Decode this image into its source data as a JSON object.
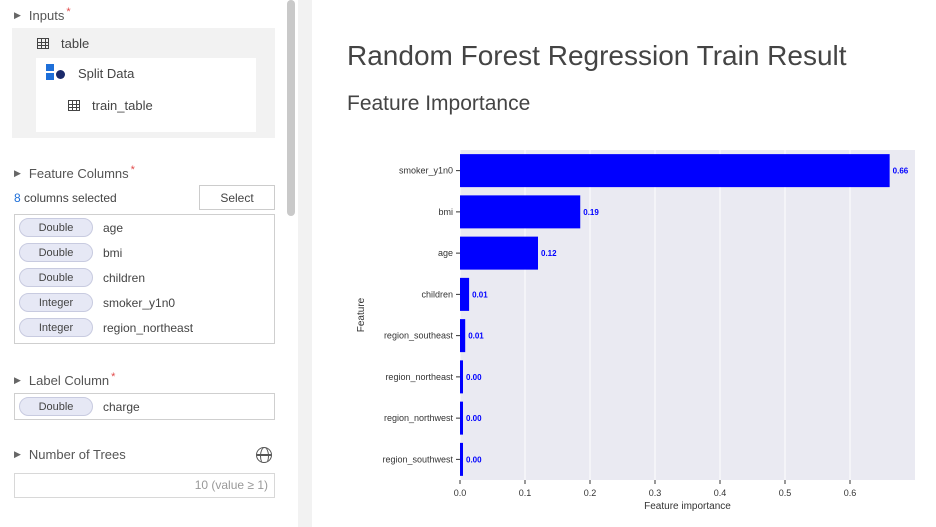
{
  "left_panel": {
    "inputs": {
      "label": "Inputs",
      "table_label": "table",
      "split_label": "Split Data",
      "train_label": "train_table"
    },
    "feature_columns": {
      "label": "Feature Columns",
      "count": "8",
      "selected_suffix": " columns selected",
      "select_button": "Select",
      "columns": [
        {
          "type": "Double",
          "name": "age"
        },
        {
          "type": "Double",
          "name": "bmi"
        },
        {
          "type": "Double",
          "name": "children"
        },
        {
          "type": "Integer",
          "name": "smoker_y1n0"
        },
        {
          "type": "Integer",
          "name": "region_northeast"
        }
      ]
    },
    "label_column": {
      "label": "Label Column",
      "type": "Double",
      "name": "charge"
    },
    "number_of_trees": {
      "label": "Number of Trees",
      "value": "10 (value ≥ 1)"
    },
    "required_mark": "*"
  },
  "main": {
    "title": "Random Forest Regression Train Result",
    "subtitle": "Feature Importance"
  },
  "colors": {
    "bar": "#0000ff",
    "plot_bg": "#eaeaf2",
    "grid": "#ffffff",
    "accent": "#1e6fd9",
    "required": "#e24b4b"
  },
  "chart_data": {
    "type": "bar",
    "orientation": "horizontal",
    "categories": [
      "smoker_y1n0",
      "bmi",
      "age",
      "children",
      "region_southeast",
      "region_northeast",
      "region_northwest",
      "region_southwest"
    ],
    "values": [
      0.661,
      0.185,
      0.12,
      0.014,
      0.008,
      0.003,
      0.003,
      0.003
    ],
    "data_labels": [
      "0.66",
      "0.19",
      "0.12",
      "0.01",
      "0.01",
      "0.00",
      "0.00",
      "0.00"
    ],
    "xlabel": "Feature importance",
    "ylabel": "Feature",
    "xlim": [
      0,
      0.7
    ],
    "xticks": [
      0.0,
      0.1,
      0.2,
      0.3,
      0.4,
      0.5,
      0.6
    ],
    "xtick_labels": [
      "0.0",
      "0.1",
      "0.2",
      "0.3",
      "0.4",
      "0.5",
      "0.6"
    ],
    "grid": true
  }
}
